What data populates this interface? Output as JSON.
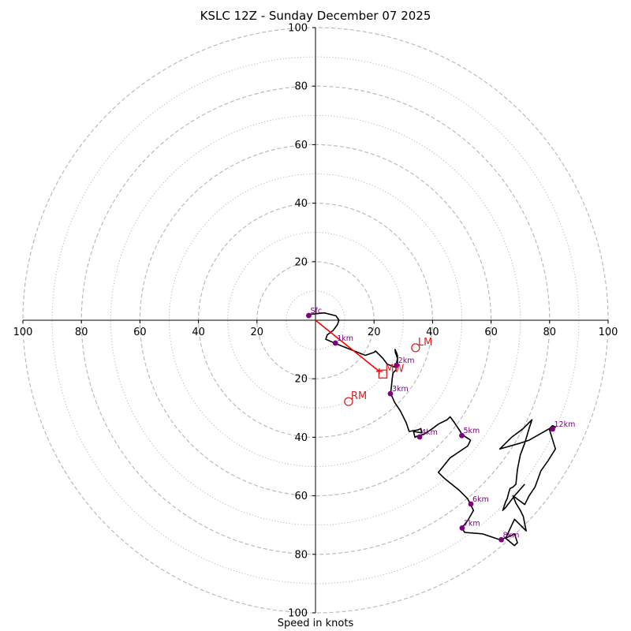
{
  "chart_data": {
    "type": "hodograph",
    "title": "KSLC 12Z - Sunday December 07 2025",
    "xlabel": "Speed in knots",
    "x_range": [
      -100,
      100
    ],
    "y_range": [
      -100,
      100
    ],
    "ticks": [
      -100,
      -80,
      -60,
      -40,
      -20,
      20,
      40,
      60,
      80,
      100
    ],
    "tick_labels": {
      "-100": "100",
      "-80": "80",
      "-60": "60",
      "-40": "40",
      "-20": "20",
      "20": "20",
      "40": "40",
      "60": "60",
      "80": "80",
      "100": "100"
    },
    "rings_dashed": [
      20,
      40,
      60,
      80,
      100
    ],
    "rings_dotted": [
      10,
      30,
      50,
      70,
      90
    ],
    "hodograph_trace": [
      [
        -2,
        2
      ],
      [
        3,
        2.5
      ],
      [
        7,
        1.5
      ],
      [
        8,
        0
      ],
      [
        7.5,
        -1.5
      ],
      [
        6,
        -3.5
      ],
      [
        4,
        -5
      ],
      [
        3.5,
        -6.5
      ],
      [
        7,
        -8
      ],
      [
        12,
        -10
      ],
      [
        17,
        -12
      ],
      [
        20,
        -11
      ],
      [
        20.5,
        -10.5
      ],
      [
        21.5,
        -11.5
      ],
      [
        23,
        -13
      ],
      [
        24.5,
        -15
      ],
      [
        27,
        -16
      ],
      [
        28,
        -15
      ],
      [
        28,
        -12
      ],
      [
        27.2,
        -10
      ],
      [
        27.3,
        -11
      ],
      [
        28,
        -13
      ],
      [
        27.5,
        -16
      ],
      [
        27.5,
        -17
      ],
      [
        26.5,
        -18
      ],
      [
        26.2,
        -20
      ],
      [
        26,
        -22
      ],
      [
        25.7,
        -25
      ],
      [
        27,
        -28
      ],
      [
        29,
        -31
      ],
      [
        31,
        -35
      ],
      [
        32,
        -38
      ],
      [
        35,
        -37.5
      ],
      [
        36,
        -37
      ],
      [
        36.3,
        -38.5
      ],
      [
        33.5,
        -38
      ],
      [
        34,
        -40
      ],
      [
        35,
        -39.5
      ],
      [
        37,
        -39
      ],
      [
        40,
        -37
      ],
      [
        42,
        -35.5
      ],
      [
        44,
        -34.5
      ],
      [
        45,
        -34
      ],
      [
        46,
        -33
      ],
      [
        47.5,
        -35
      ],
      [
        49.5,
        -38
      ],
      [
        50,
        -39
      ],
      [
        53,
        -41
      ],
      [
        52,
        -43
      ],
      [
        46,
        -47
      ],
      [
        42,
        -52
      ],
      [
        44,
        -54
      ],
      [
        49,
        -58
      ],
      [
        52,
        -61
      ],
      [
        53,
        -63
      ],
      [
        54,
        -65
      ],
      [
        52,
        -68.5
      ],
      [
        50,
        -71
      ],
      [
        51,
        -72.5
      ],
      [
        57,
        -73
      ],
      [
        63,
        -75
      ],
      [
        66,
        -74
      ],
      [
        68,
        -73
      ],
      [
        69,
        -76
      ],
      [
        68,
        -77
      ],
      [
        65,
        -74.5
      ],
      [
        68,
        -68
      ],
      [
        72,
        -72
      ],
      [
        71,
        -67
      ],
      [
        70,
        -65
      ],
      [
        68.5,
        -62.5
      ],
      [
        67.5,
        -60
      ],
      [
        71.5,
        -63
      ],
      [
        73,
        -60
      ],
      [
        75,
        -57
      ],
      [
        77,
        -51.5
      ],
      [
        79.5,
        -48
      ],
      [
        82,
        -44
      ],
      [
        80,
        -37.5
      ],
      [
        82,
        -36.5
      ],
      [
        81,
        -36
      ],
      [
        80,
        -37
      ],
      [
        73,
        -41
      ],
      [
        70,
        -42
      ],
      [
        63,
        -44
      ],
      [
        67,
        -40
      ],
      [
        71,
        -37
      ],
      [
        74,
        -34
      ],
      [
        73,
        -37
      ],
      [
        71.5,
        -42
      ],
      [
        70,
        -46
      ],
      [
        69,
        -51
      ],
      [
        68.5,
        -56
      ],
      [
        67.5,
        -57
      ],
      [
        66.5,
        -57.5
      ],
      [
        66,
        -59
      ],
      [
        65.5,
        -61
      ],
      [
        65,
        -62
      ],
      [
        64,
        -65
      ],
      [
        65,
        -64
      ],
      [
        68,
        -60
      ],
      [
        71.5,
        -56
      ]
    ],
    "height_markers": [
      {
        "label": "Sfc",
        "u": -2.3,
        "v": 1.6
      },
      {
        "label": "1km",
        "u": 6.8,
        "v": -7.8
      },
      {
        "label": "2km",
        "u": 27.7,
        "v": -15.4
      },
      {
        "label": "3km",
        "u": 25.6,
        "v": -25.1
      },
      {
        "label": "4km",
        "u": 35.6,
        "v": -39.9
      },
      {
        "label": "5km",
        "u": 50.0,
        "v": -39.4
      },
      {
        "label": "6km",
        "u": 53.1,
        "v": -62.8
      },
      {
        "label": "7km",
        "u": 50.1,
        "v": -71.0
      },
      {
        "label": "8km",
        "u": 63.5,
        "v": -75.0
      },
      {
        "label": "12km",
        "u": 81.0,
        "v": -37.2
      }
    ],
    "storm_motion": {
      "shear_vector": [
        [
          0,
          0
        ],
        [
          21.8,
          -17.5
        ]
      ],
      "motions": [
        {
          "label": "LM",
          "u": 34.2,
          "v": -9.4,
          "marker": "circle"
        },
        {
          "label": "MW",
          "u": 23.0,
          "v": -18.4,
          "marker": "square"
        },
        {
          "label": "RM",
          "u": 11.3,
          "v": -27.8,
          "marker": "circle"
        }
      ]
    },
    "colors": {
      "trace": "#000000",
      "marker": "#800080",
      "storm": "#dd2222",
      "shear": "#ff0000",
      "grid": "#bbbbbb"
    }
  }
}
